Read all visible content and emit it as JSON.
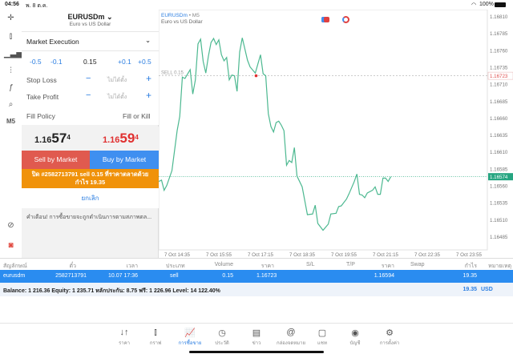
{
  "status": {
    "time": "04:56",
    "date": "พ. 8 ต.ค.",
    "battery": "100%"
  },
  "toolbar": {
    "timeframe": "M5"
  },
  "order": {
    "symbol": "EURUSDm",
    "description": "Euro vs US Dollar",
    "execution": "Market Execution",
    "volume_steps": [
      "-0.5",
      "-0.1",
      "+0.1",
      "+0.5"
    ],
    "volume": "0.15",
    "stop_loss_label": "Stop Loss",
    "take_profit_label": "Take Profit",
    "not_set": "ไม่ได้ตั้ง",
    "fill_policy_label": "Fill Policy",
    "fill_policy": "Fill or Kill",
    "bid": {
      "main": "1.16",
      "big": "57",
      "small": "4"
    },
    "ask": {
      "main": "1.16",
      "big": "59",
      "small": "4"
    },
    "sell_label": "Sell by Market",
    "buy_label": "Buy by Market",
    "close_label": "ปิด #2582713791 sell 0.15 ที่ราคาตลาดด้วยกำไร 19.35",
    "cancel_label": "ยกเลิก",
    "warning": "คำเตือน! การซื้อขายจะถูกดำเนินการตามสภาพตล..."
  },
  "colors": {
    "sell": "#e05a4f",
    "buy": "#3f8ff0",
    "close": "#f0920a",
    "line": "#4cb890",
    "ask": "#e03030",
    "selected_row": "#2a8cf0"
  },
  "chart_data": {
    "type": "line",
    "symbol": "EURUSDm",
    "timeframe": "M5",
    "subtitle": "Euro vs US Dollar",
    "ylim": [
      1.1647,
      1.16825
    ],
    "yticks": [
      1.1681,
      1.16785,
      1.1676,
      1.16735,
      1.1671,
      1.16685,
      1.1666,
      1.16635,
      1.1661,
      1.16585,
      1.1656,
      1.16535,
      1.1651,
      1.16485
    ],
    "xtick_labels": [
      "7 Oct 14:35",
      "7 Oct 15:55",
      "7 Oct 17:15",
      "7 Oct 18:35",
      "7 Oct 19:55",
      "7 Oct 21:15",
      "7 Oct 22:35",
      "7 Oct 23:55"
    ],
    "sell_line": {
      "label": "SELL 0.15",
      "price": "1.16723"
    },
    "bid_price": "1.16574",
    "points": [
      [
        "14:00",
        1.16567
      ],
      [
        "14:05",
        1.16569
      ],
      [
        "14:10",
        1.16554
      ],
      [
        "14:15",
        1.16561
      ],
      [
        "14:25",
        1.16583
      ],
      [
        "14:35",
        1.16642
      ],
      [
        "14:40",
        1.16663
      ],
      [
        "14:45",
        1.16721
      ],
      [
        "14:50",
        1.16719
      ],
      [
        "15:00",
        1.16732
      ],
      [
        "15:05",
        1.16696
      ],
      [
        "15:10",
        1.16717
      ],
      [
        "15:15",
        1.1677
      ],
      [
        "15:20",
        1.16777
      ],
      [
        "15:25",
        1.16744
      ],
      [
        "15:30",
        1.16727
      ],
      [
        "15:35",
        1.16752
      ],
      [
        "15:40",
        1.16772
      ],
      [
        "15:45",
        1.16778
      ],
      [
        "15:50",
        1.16769
      ],
      [
        "15:55",
        1.16776
      ],
      [
        "16:00",
        1.16754
      ],
      [
        "16:05",
        1.16745
      ],
      [
        "16:10",
        1.1675
      ],
      [
        "16:15",
        1.16717
      ],
      [
        "16:20",
        1.16724
      ],
      [
        "16:25",
        1.16723
      ],
      [
        "16:30",
        1.167
      ],
      [
        "16:35",
        1.16758
      ],
      [
        "16:40",
        1.16779
      ],
      [
        "16:50",
        1.16746
      ],
      [
        "16:55",
        1.16736
      ],
      [
        "17:05",
        1.16727
      ],
      [
        "17:15",
        1.16754
      ],
      [
        "17:20",
        1.16726
      ],
      [
        "17:25",
        1.16723
      ],
      [
        "17:30",
        1.16667
      ],
      [
        "17:35",
        1.16648
      ],
      [
        "17:40",
        1.1664
      ],
      [
        "17:45",
        1.16654
      ],
      [
        "17:50",
        1.16656
      ],
      [
        "17:55",
        1.1665
      ],
      [
        "18:00",
        1.16642
      ],
      [
        "18:05",
        1.16591
      ],
      [
        "18:10",
        1.16598
      ],
      [
        "18:15",
        1.16595
      ],
      [
        "18:20",
        1.16617
      ],
      [
        "18:25",
        1.16575
      ],
      [
        "18:35",
        1.16559
      ],
      [
        "18:45",
        1.16518
      ],
      [
        "18:55",
        1.16519
      ],
      [
        "19:00",
        1.16532
      ],
      [
        "19:05",
        1.16505
      ],
      [
        "19:15",
        1.16495
      ],
      [
        "19:25",
        1.16504
      ],
      [
        "19:30",
        1.16519
      ],
      [
        "19:40",
        1.1652
      ],
      [
        "19:45",
        1.1653
      ],
      [
        "19:50",
        1.16531
      ],
      [
        "20:00",
        1.16541
      ],
      [
        "20:05",
        1.16549
      ],
      [
        "20:15",
        1.16567
      ],
      [
        "20:20",
        1.16578
      ],
      [
        "20:25",
        1.16548
      ],
      [
        "20:30",
        1.16547
      ],
      [
        "20:35",
        1.16543
      ],
      [
        "20:40",
        1.1655
      ],
      [
        "20:50",
        1.16554
      ],
      [
        "20:55",
        1.16559
      ],
      [
        "21:00",
        1.16548
      ],
      [
        "21:05",
        1.16548
      ],
      [
        "21:10",
        1.16572
      ],
      [
        "21:15",
        1.16572
      ],
      [
        "21:20",
        1.16567
      ],
      [
        "21:25",
        1.16574
      ]
    ]
  },
  "table": {
    "headers": [
      "สัญลักษณ์",
      "ตั๋ว",
      "เวลา",
      "ประเภท",
      "Volume",
      "ราคา",
      "S/L",
      "T/P",
      "ราคา",
      "Swap",
      "กำไร",
      "หมายเหตุ"
    ],
    "row": {
      "symbol": "eurusdm",
      "ticket": "2582713791",
      "time": "10.07 17:36",
      "type": "sell",
      "volume": "0.15",
      "open_price": "1.16723",
      "price": "1.16594",
      "profit": "19.35"
    },
    "balance": "Balance: 1 216.36 Equity: 1 235.71 หลักประกัน: 8.75 ฟรี: 1 226.96 Level: 14 122.40%",
    "total_profit": "19.35",
    "currency": "USD"
  },
  "tabs": [
    {
      "label": "ราคา",
      "icon": "↓↑"
    },
    {
      "label": "กราฟ",
      "icon": "⫾"
    },
    {
      "label": "การซื้อขาย",
      "icon": "📈",
      "active": true
    },
    {
      "label": "ประวัติ",
      "icon": "◷"
    },
    {
      "label": "ข่าว",
      "icon": "▤"
    },
    {
      "label": "กล่องจดหมาย",
      "icon": "@"
    },
    {
      "label": "แชท",
      "icon": "▢"
    },
    {
      "label": "บัญชี",
      "icon": "◉"
    },
    {
      "label": "การตั้งค่า",
      "icon": "⚙"
    }
  ]
}
